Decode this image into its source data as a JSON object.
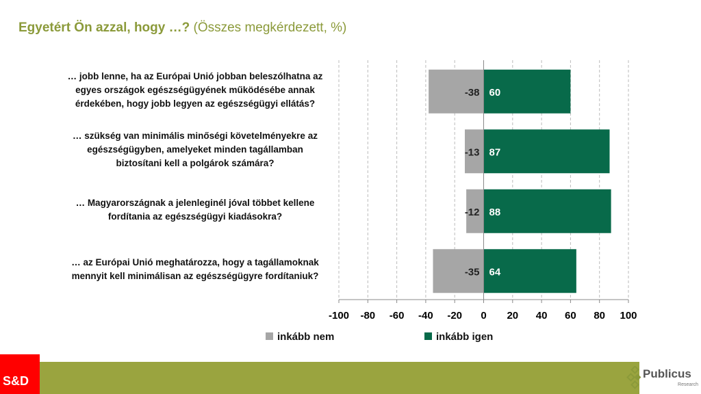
{
  "title": {
    "bold": "Egyetért Ön azzal, hogy …?",
    "normal": " (Összes megkérdezett, %)"
  },
  "chart_data": {
    "type": "bar",
    "orientation": "horizontal-diverging",
    "title": "Egyetért Ön azzal, hogy …? (Összes megkérdezett, %)",
    "categories": [
      [
        "… jobb lenne, ha az Európai Unió jobban beleszólhatna az",
        "egyes országok egészségügyének működésébe annak",
        "érdekében, hogy jobb legyen az egészségügyi ellátás?"
      ],
      [
        "… szükség van minimális minőségi követelményekre az",
        "egészségügyben, amelyeket minden tagállamban",
        "biztosítani kell a polgárok számára?"
      ],
      [
        "… Magyarországnak a jelenleginél jóval többet kellene",
        "fordítania az egészségügyi kiadásokra?"
      ],
      [
        "… az Európai Unió meghatározza, hogy a tagállamoknak",
        "mennyit kell minimálisan az egészségügyre fordítaniuk?"
      ]
    ],
    "series": [
      {
        "name": "inkább nem",
        "color": "#a6a6a6",
        "values": [
          -38,
          -13,
          -12,
          -35
        ]
      },
      {
        "name": "inkább igen",
        "color": "#086a4a",
        "values": [
          60,
          87,
          88,
          64
        ]
      }
    ],
    "xlim": [
      -100,
      100
    ],
    "xticks": [
      "-100",
      "-80",
      "-60",
      "-40",
      "-20",
      "0",
      "20",
      "40",
      "60",
      "80",
      "100"
    ],
    "grid": "vertical dashed",
    "legend": "bottom"
  },
  "footer": {
    "party": "S&D",
    "logo_name": "Publicus",
    "logo_sub": "Research"
  }
}
